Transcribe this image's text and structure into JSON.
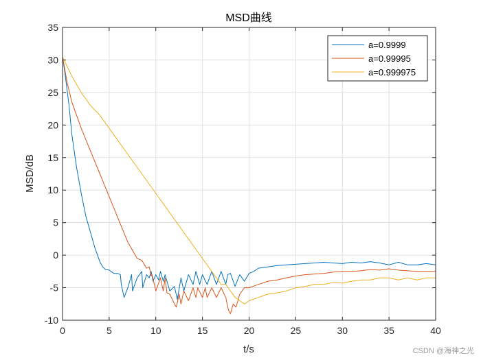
{
  "chart_data": {
    "type": "line",
    "title": "MSD曲线",
    "xlabel": "t/s",
    "ylabel": "MSD/dB",
    "xlim": [
      0,
      40
    ],
    "ylim": [
      -10,
      35
    ],
    "x_ticks": [
      0,
      5,
      10,
      15,
      20,
      25,
      30,
      35,
      40
    ],
    "y_ticks": [
      -10,
      -5,
      0,
      5,
      10,
      15,
      20,
      25,
      30,
      35
    ],
    "grid": true,
    "legend_position": "top-right",
    "series": [
      {
        "name": "a=0.9999",
        "color": "#0072BD",
        "x": [
          0,
          0.3,
          0.7,
          1.0,
          1.5,
          2.0,
          2.5,
          3.0,
          3.5,
          4.0,
          4.3,
          4.6,
          5.0,
          5.5,
          5.9,
          6.2,
          6.3,
          6.6,
          7.0,
          7.4,
          7.5,
          8.0,
          8.5,
          8.6,
          9.0,
          9.3,
          9.5,
          9.7,
          10.0,
          10.3,
          10.5,
          10.8,
          11.0,
          11.5,
          12.0,
          12.3,
          12.7,
          13.0,
          13.5,
          14.0,
          14.3,
          14.7,
          15.0,
          15.5,
          16.0,
          16.5,
          17.0,
          17.5,
          17.7,
          18.0,
          18.5,
          19.0,
          19.5,
          20.0,
          20.5,
          21.0,
          22.0,
          23.0,
          24.0,
          25.0,
          26.0,
          27.0,
          28.0,
          29.0,
          30.0,
          31.0,
          32.0,
          33.0,
          34.0,
          35.0,
          36.0,
          37.0,
          38.0,
          39.0,
          40.0
        ],
        "y": [
          30.5,
          27.5,
          23.0,
          18.5,
          13.5,
          9.5,
          6.0,
          3.5,
          1.0,
          -1.0,
          -1.8,
          -2.2,
          -2.3,
          -2.8,
          -2.8,
          -3.0,
          -4.5,
          -6.5,
          -5.0,
          -3.0,
          -5.5,
          -3.5,
          -2.5,
          -5.0,
          -3.0,
          -3.5,
          -2.5,
          -4.0,
          -3.0,
          -3.8,
          -2.5,
          -4.0,
          -3.0,
          -5.5,
          -4.8,
          -6.8,
          -3.5,
          -5.5,
          -3.0,
          -4.5,
          -2.5,
          -4.5,
          -3.0,
          -4.5,
          -2.5,
          -4.5,
          -2.5,
          -4.5,
          -3.0,
          -2.8,
          -4.8,
          -3.0,
          -4.0,
          -2.8,
          -2.5,
          -2.0,
          -1.8,
          -1.6,
          -1.5,
          -1.4,
          -1.3,
          -1.2,
          -1.1,
          -1.2,
          -1.3,
          -1.1,
          -1.2,
          -1.0,
          -1.2,
          -1.5,
          -1.1,
          -1.5,
          -1.5,
          -1.3,
          -1.5
        ]
      },
      {
        "name": "a=0.99995",
        "color": "#D95319",
        "x": [
          0,
          0.5,
          1.0,
          1.5,
          2.0,
          3.0,
          4.0,
          5.0,
          6.0,
          7.0,
          8.0,
          8.5,
          9.0,
          9.3,
          9.5,
          9.6,
          10.0,
          10.5,
          10.8,
          11.0,
          11.2,
          11.5,
          12.0,
          12.2,
          12.5,
          12.7,
          13.0,
          13.5,
          14.0,
          14.3,
          14.5,
          15.0,
          15.3,
          15.5,
          16.0,
          16.5,
          17.0,
          17.5,
          17.8,
          18.0,
          18.3,
          18.6,
          19.0,
          19.5,
          20.0,
          21.0,
          22.0,
          23.0,
          24.0,
          25.0,
          26.0,
          27.0,
          28.0,
          29.0,
          30.0,
          31.0,
          32.0,
          33.0,
          34.0,
          35.0,
          36.0,
          37.0,
          38.0,
          39.0,
          40.0
        ],
        "y": [
          30.5,
          26.5,
          23.5,
          21.5,
          19.5,
          16.0,
          12.5,
          9.0,
          5.5,
          2.0,
          -0.5,
          -0.8,
          -2.0,
          -1.8,
          -3.2,
          -3.0,
          -5.5,
          -3.5,
          -5.5,
          -3.5,
          -5.8,
          -6.0,
          -7.5,
          -8.0,
          -6.0,
          -7.5,
          -5.5,
          -7.0,
          -5.0,
          -6.5,
          -5.0,
          -6.5,
          -5.0,
          -6.5,
          -5.0,
          -6.5,
          -5.0,
          -6.5,
          -8.5,
          -9.0,
          -7.5,
          -8.0,
          -6.0,
          -5.0,
          -5.0,
          -4.5,
          -4.0,
          -3.8,
          -3.5,
          -3.2,
          -3.0,
          -2.9,
          -2.8,
          -2.6,
          -2.5,
          -2.5,
          -2.4,
          -2.2,
          -2.3,
          -2.1,
          -2.3,
          -2.4,
          -2.5,
          -2.5,
          -2.5
        ]
      },
      {
        "name": "a=0.999975",
        "color": "#EDB120",
        "x": [
          0,
          0.5,
          1.0,
          2.0,
          3.0,
          4.0,
          5.0,
          6.0,
          7.0,
          8.0,
          9.0,
          10.0,
          11.0,
          12.0,
          13.0,
          14.0,
          15.0,
          16.0,
          17.0,
          17.5,
          18.0,
          18.5,
          19.0,
          19.5,
          20.0,
          21.0,
          22.0,
          23.0,
          24.0,
          25.0,
          26.0,
          27.0,
          28.0,
          29.0,
          30.0,
          31.0,
          32.0,
          33.0,
          34.0,
          35.0,
          36.0,
          37.0,
          38.0,
          39.0,
          40.0
        ],
        "y": [
          30.5,
          29.0,
          27.5,
          25.0,
          23.0,
          21.5,
          19.5,
          17.5,
          15.5,
          13.5,
          11.5,
          9.5,
          7.5,
          5.5,
          3.5,
          1.5,
          -0.5,
          -2.5,
          -4.5,
          -4.5,
          -5.5,
          -6.5,
          -7.0,
          -7.5,
          -7.0,
          -6.5,
          -6.0,
          -5.8,
          -5.5,
          -5.0,
          -4.8,
          -4.5,
          -4.5,
          -4.2,
          -4.3,
          -4.0,
          -3.8,
          -3.8,
          -3.5,
          -3.5,
          -3.8,
          -3.5,
          -3.8,
          -3.5,
          -3.5
        ]
      }
    ]
  },
  "watermark": "CSDN @海神之光"
}
